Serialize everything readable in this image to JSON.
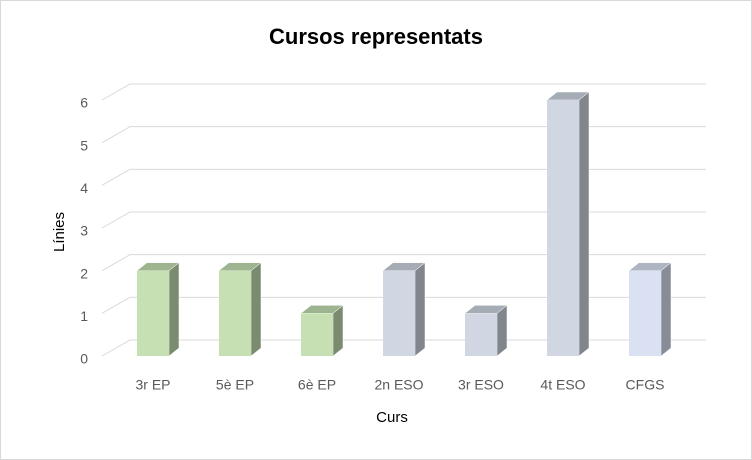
{
  "chart_data": {
    "type": "bar3d",
    "title": "Cursos representats",
    "x_label": "Curs",
    "y_label": "Línies",
    "categories": [
      "3r EP",
      "5è EP",
      "6è EP",
      "2n ESO",
      "3r ESO",
      "4t ESO",
      "CFGS"
    ],
    "values": [
      2,
      2,
      1,
      2,
      1,
      6,
      2
    ],
    "colors": [
      "#c6e0b4",
      "#c6e0b4",
      "#c6e0b4",
      "#d0d7e2",
      "#d0d7e2",
      "#d0d7e2",
      "#dae1f3"
    ],
    "ylim": [
      0,
      6
    ],
    "yticks": [
      0,
      1,
      2,
      3,
      4,
      5,
      6
    ],
    "grid": true
  }
}
